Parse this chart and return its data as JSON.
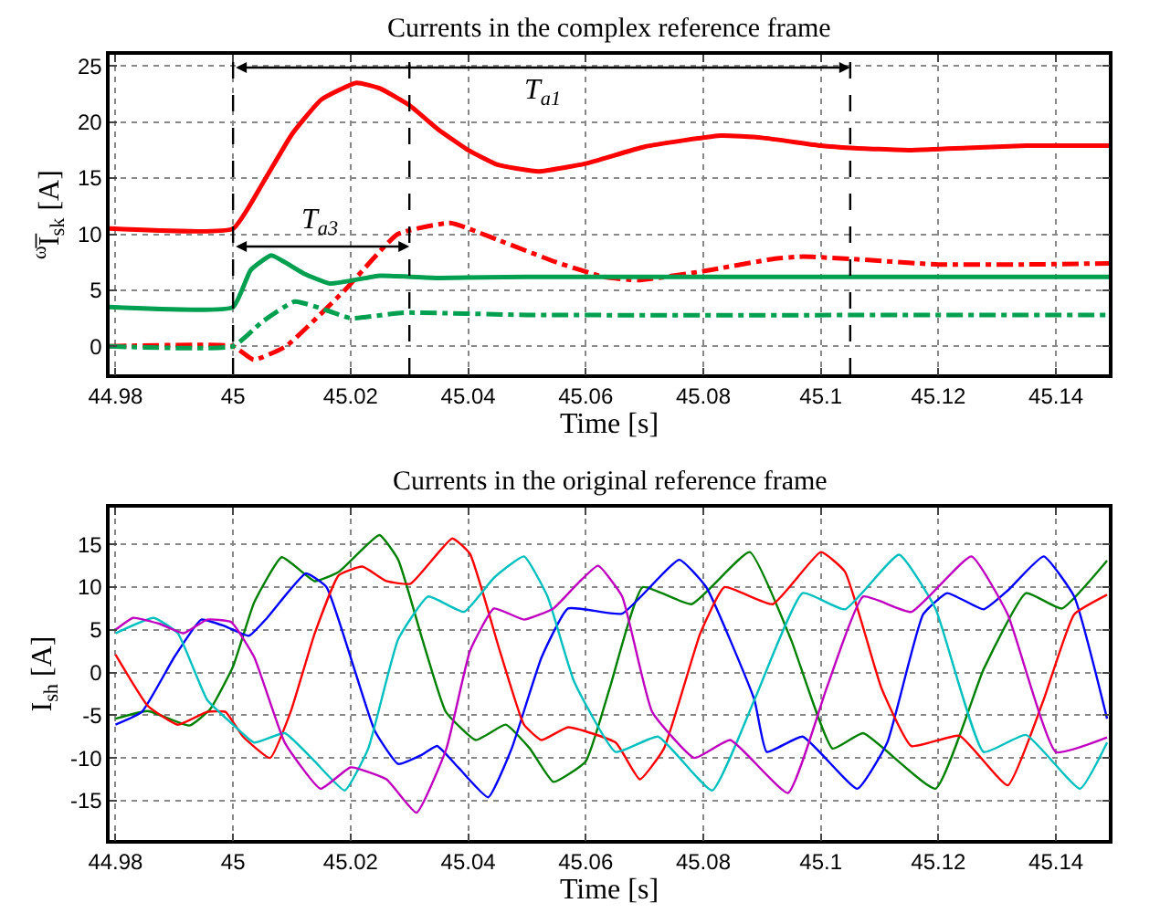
{
  "chart_data": [
    {
      "type": "line",
      "title": "Currents in the complex reference frame",
      "xlabel": "Time [s]",
      "ylabel": "$^{ω}$I̅$_{sk}$ [A]",
      "xlim": [
        44.979,
        45.149
      ],
      "ylim": [
        -2.5,
        26
      ],
      "xticks": [
        44.98,
        45,
        45.02,
        45.04,
        45.06,
        45.08,
        45.1,
        45.12,
        45.14
      ],
      "yticks": [
        0,
        5,
        10,
        15,
        20,
        25
      ],
      "grid": true,
      "series": [
        {
          "color": "#ff0000",
          "line_style": "solid",
          "x": [
            44.979,
            45,
            45.005,
            45.01,
            45.015,
            45.021,
            45.025,
            45.03,
            45.035,
            45.04,
            45.045,
            45.052,
            45.06,
            45.07,
            45.083,
            45.09,
            45.1,
            45.105,
            45.115,
            45.125,
            45.135,
            45.149
          ],
          "values": [
            10.5,
            10.5,
            14.5,
            18.9,
            22,
            23.5,
            23,
            21.5,
            19.3,
            17.5,
            16.2,
            15.6,
            16.3,
            17.8,
            18.8,
            18.6,
            17.9,
            17.7,
            17.5,
            17.7,
            17.9,
            17.9
          ]
        },
        {
          "color": "#ff0000",
          "line_style": "dashdot",
          "x": [
            44.979,
            45,
            45.0035,
            45.009,
            45.019,
            45.028,
            45.037,
            45.045,
            45.055,
            45.063,
            45.069,
            45.08,
            45.092,
            45.097,
            45.105,
            45.12,
            45.135,
            45.149
          ],
          "values": [
            0,
            0,
            -1.2,
            0,
            5,
            10,
            11,
            9.5,
            7.5,
            6.2,
            5.9,
            6.7,
            7.8,
            8,
            7.8,
            7.3,
            7.3,
            7.4
          ]
        },
        {
          "color": "#00a050",
          "line_style": "solid",
          "x": [
            44.979,
            45,
            45.003,
            45.0065,
            45.012,
            45.0165,
            45.025,
            45.035,
            45.05,
            45.149
          ],
          "values": [
            3.5,
            3.5,
            6.8,
            8.1,
            6.5,
            5.6,
            6.3,
            6.1,
            6.2,
            6.2
          ]
        },
        {
          "color": "#00a050",
          "line_style": "dashdot",
          "x": [
            44.979,
            45,
            45.005,
            45.0105,
            45.016,
            45.02,
            45.029,
            45.05,
            45.149
          ],
          "values": [
            0,
            0,
            2.2,
            4,
            3.2,
            2.5,
            3,
            2.8,
            2.8
          ]
        }
      ],
      "ref_lines": [
        {
          "axis": "x",
          "value": 45,
          "color": "#000000",
          "line_style": "dashed"
        },
        {
          "axis": "x",
          "value": 45.03,
          "color": "#000000",
          "line_style": "dashed"
        },
        {
          "axis": "x",
          "value": 45.105,
          "color": "#000000",
          "line_style": "dashed"
        }
      ],
      "annotations": [
        "T$_{a1}$",
        "T$_{a3}$"
      ]
    },
    {
      "type": "line",
      "title": "Currents in the original reference frame",
      "xlabel": "Time [s]",
      "ylabel": "I$_{sh}$ [A]",
      "xlim": [
        44.979,
        45.149
      ],
      "ylim": [
        -19.6,
        19.3
      ],
      "xticks": [
        44.98,
        45,
        45.02,
        45.04,
        45.06,
        45.08,
        45.1,
        45.12,
        45.14
      ],
      "yticks": [
        -15,
        -10,
        -5,
        0,
        5,
        10,
        15
      ],
      "grid": true,
      "series": [
        {
          "color": "#008000",
          "line_style": "solid",
          "x": [
            44.98,
            44.9855,
            44.9926,
            44.9961,
            45.0,
            45.0036,
            45.0083,
            45.0139,
            45.018,
            45.0249,
            45.0281,
            45.0322,
            45.0362,
            45.0413,
            45.0464,
            45.0505,
            45.0545,
            45.06,
            45.0641,
            45.0697,
            45.078,
            45.0879,
            45.0949,
            45.102,
            45.1072,
            45.1195,
            45.1277,
            45.1349,
            45.141,
            45.1487
          ],
          "values": [
            -5.4,
            -4.5,
            -6.2,
            -4.3,
            0.7,
            8.2,
            13.5,
            10.7,
            11.8,
            16.1,
            13.2,
            3.9,
            -4.6,
            -7.9,
            -6.1,
            -8.9,
            -12.8,
            -10.4,
            -1.8,
            10,
            8,
            14.1,
            3.9,
            -8.9,
            -7.1,
            -13.6,
            0.4,
            9.3,
            7.5,
            13.1
          ]
        },
        {
          "color": "#0000ff",
          "line_style": "solid",
          "x": [
            44.98,
            44.9845,
            44.99,
            44.9946,
            44.9987,
            45.0027,
            45.0058,
            45.0124,
            45.0159,
            45.02,
            45.0241,
            45.0281,
            45.0322,
            45.0347,
            45.0383,
            45.0434,
            45.0474,
            45.0525,
            45.057,
            45.0662,
            45.0759,
            45.0805,
            45.0887,
            45.0908,
            45.0969,
            45.1062,
            45.1113,
            45.1174,
            45.1215,
            45.1277,
            45.1318,
            45.1379,
            45.1431,
            45.1487
          ],
          "values": [
            -6.1,
            -4.6,
            1.8,
            6.2,
            5.4,
            4.3,
            6.4,
            11.6,
            10,
            1.8,
            -6.8,
            -10.7,
            -9.6,
            -8.6,
            -11.1,
            -14.6,
            -8.9,
            1.8,
            7.5,
            6.9,
            13.2,
            10,
            -3.2,
            -9.3,
            -7.5,
            -13.6,
            -8.2,
            6.8,
            9.3,
            7.4,
            9.6,
            13.6,
            8.9,
            -5.4
          ]
        },
        {
          "color": "#ff0000",
          "line_style": "solid",
          "x": [
            44.98,
            44.9855,
            44.9906,
            44.9956,
            44.9987,
            45.0017,
            45.0063,
            45.0098,
            45.0139,
            45.018,
            45.022,
            45.0261,
            45.0302,
            45.0373,
            45.0403,
            45.0454,
            45.0495,
            45.0525,
            45.057,
            45.0651,
            45.0692,
            45.0733,
            45.0795,
            45.0836,
            45.0918,
            45.1,
            45.1041,
            45.1103,
            45.1154,
            45.1236,
            45.1318,
            45.1379,
            45.1431,
            45.1487
          ],
          "values": [
            2.1,
            -3.9,
            -6.1,
            -4.6,
            -4.6,
            -7.5,
            -10,
            -4.6,
            4.6,
            11.4,
            12.4,
            10.7,
            10.4,
            15.7,
            13.9,
            2.5,
            -6.1,
            -7.9,
            -6.4,
            -8.2,
            -12.5,
            -8.9,
            4.6,
            10,
            8,
            14.1,
            11.8,
            -1.8,
            -8.6,
            -7.4,
            -13.2,
            -3.2,
            6.8,
            9.1
          ]
        },
        {
          "color": "#00bfbf",
          "line_style": "solid",
          "x": [
            44.98,
            44.9865,
            44.9906,
            44.9956,
            45.0,
            45.0036,
            45.0088,
            45.0139,
            45.019,
            45.023,
            45.0281,
            45.0332,
            45.0393,
            45.0444,
            45.0495,
            45.0535,
            45.058,
            45.0651,
            45.0723,
            45.0815,
            45.0887,
            45.0969,
            45.1041,
            45.1133,
            45.1195,
            45.1277,
            45.1349,
            45.1441,
            45.1487
          ],
          "values": [
            4.6,
            6.4,
            4.6,
            -3.2,
            -6.1,
            -8.2,
            -7.1,
            -10.4,
            -13.8,
            -8.9,
            3.9,
            8.9,
            7.1,
            11.1,
            13.6,
            8.9,
            -1,
            -9.3,
            -7.5,
            -13.8,
            -3.2,
            9.3,
            7.4,
            13.8,
            7.5,
            -9.3,
            -7.3,
            -13.6,
            -8.2
          ]
        },
        {
          "color": "#bf00bf",
          "line_style": "solid",
          "x": [
            44.98,
            44.983,
            44.9875,
            44.9916,
            44.9956,
            44.9997,
            45.0036,
            45.0088,
            45.0149,
            45.02,
            45.0261,
            45.0312,
            45.0363,
            45.0403,
            45.0444,
            45.0495,
            45.0545,
            45.0586,
            45.0621,
            45.0662,
            45.0713,
            45.0785,
            45.0846,
            45.0944,
            45.101,
            45.1072,
            45.1154,
            45.1256,
            45.1318,
            45.14,
            45.1487
          ],
          "values": [
            5,
            6.4,
            5.7,
            4.6,
            6.2,
            5.9,
            1.8,
            -8.2,
            -13.6,
            -11.1,
            -12.5,
            -16.4,
            -8.9,
            2.5,
            7.5,
            6.2,
            7.5,
            10.4,
            12.5,
            8.9,
            -4.6,
            -10,
            -7.9,
            -14.1,
            -1.8,
            8.9,
            7.1,
            13.6,
            6.8,
            -9.3,
            -7.6
          ]
        }
      ]
    }
  ]
}
